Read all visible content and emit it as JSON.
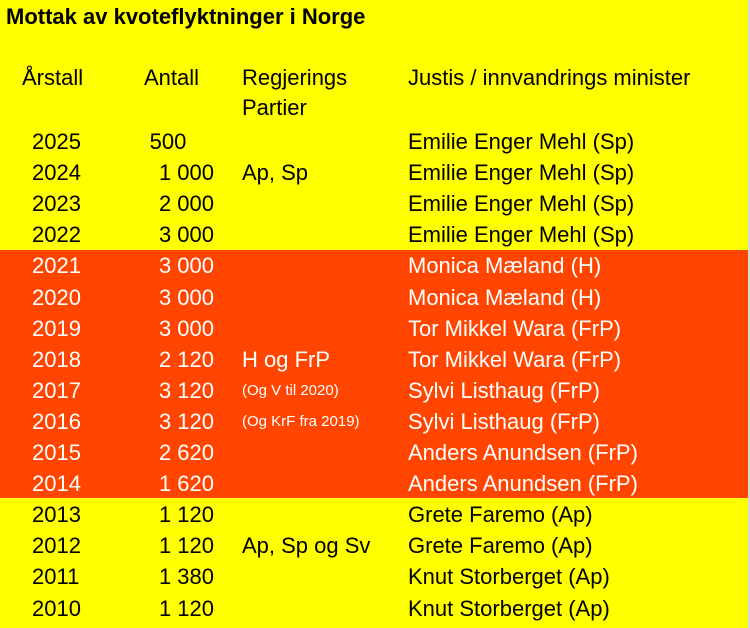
{
  "title": "Mottak av kvoteflyktninger i Norge",
  "headers": {
    "year": "Årstall",
    "count": "Antall",
    "parties_line1": "Regjerings",
    "parties_line2": "Partier",
    "minister": "Justis / innvandrings minister"
  },
  "colors": {
    "background": "#ffff00",
    "band": "#ff4500",
    "band_text": "#ffffff"
  },
  "rows": [
    {
      "year": "2025",
      "count": "500",
      "party": "",
      "minister": "Emilie Enger Mehl (Sp)"
    },
    {
      "year": "2024",
      "count": "1 000",
      "party": "Ap, Sp",
      "minister": "Emilie Enger Mehl (Sp)"
    },
    {
      "year": "2023",
      "count": "2 000",
      "party": "",
      "minister": "Emilie Enger Mehl (Sp)"
    },
    {
      "year": "2022",
      "count": "3 000",
      "party": "",
      "minister": "Emilie Enger Mehl (Sp)"
    },
    {
      "year": "2021",
      "count": "3 000",
      "party": "",
      "minister": "Monica Mæland (H)"
    },
    {
      "year": "2020",
      "count": "3 000",
      "party": "",
      "minister": "Monica Mæland (H)"
    },
    {
      "year": "2019",
      "count": "3 000",
      "party": "",
      "minister": "Tor Mikkel Wara (FrP)"
    },
    {
      "year": "2018",
      "count": "2 120",
      "party": "H og FrP",
      "minister": "Tor Mikkel Wara (FrP)"
    },
    {
      "year": "2017",
      "count": "3 120",
      "party": "(Og V til 2020)",
      "minister": "Sylvi Listhaug (FrP)"
    },
    {
      "year": "2016",
      "count": "3 120",
      "party": "(Og KrF fra 2019)",
      "minister": "Sylvi Listhaug (FrP)"
    },
    {
      "year": "2015",
      "count": "2 620",
      "party": "",
      "minister": "Anders Anundsen (FrP)"
    },
    {
      "year": "2014",
      "count": "1 620",
      "party": "",
      "minister": "Anders Anundsen (FrP)"
    },
    {
      "year": "2013",
      "count": "1 120",
      "party": "",
      "minister": "Grete Faremo (Ap)"
    },
    {
      "year": "2012",
      "count": "1 120",
      "party": "Ap, Sp og Sv",
      "minister": "Grete Faremo (Ap)"
    },
    {
      "year": "2011",
      "count": "1 380",
      "party": "",
      "minister": "Knut Storberget (Ap)"
    },
    {
      "year": "2010",
      "count": "1 120",
      "party": "",
      "minister": "Knut Storberget (Ap)"
    }
  ]
}
